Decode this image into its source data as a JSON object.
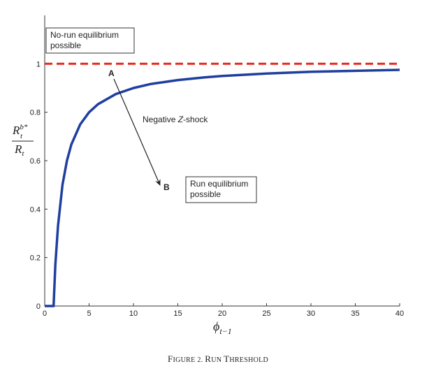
{
  "chart_data": {
    "type": "line",
    "xlim": [
      0,
      40
    ],
    "ylim": [
      0,
      1.2
    ],
    "x_ticks": [
      0,
      5,
      10,
      15,
      20,
      25,
      30,
      35,
      40
    ],
    "y_ticks": [
      0,
      0.2,
      0.4,
      0.6,
      0.8,
      1
    ],
    "x_tick_labels": [
      "0",
      "5",
      "10",
      "15",
      "20",
      "25",
      "30",
      "35",
      "40"
    ],
    "y_tick_labels": [
      "0",
      "0.2",
      "0.4",
      "0.6",
      "0.8",
      "1"
    ],
    "grid": false,
    "xlabel": {
      "main": "ϕ",
      "subscript": "t−1"
    },
    "ylabel": {
      "num_main": "R",
      "num_sub": "t",
      "num_sup": "b*",
      "den_main": "R",
      "den_sub": "t"
    },
    "series": [
      {
        "color": "#1f3f9f",
        "style": "solid",
        "x": [
          0,
          1,
          1.2,
          1.5,
          2,
          2.5,
          3,
          4,
          5,
          6,
          8,
          10,
          12,
          15,
          18,
          20,
          25,
          30,
          35,
          40
        ],
        "y": [
          0,
          0,
          0.17,
          0.33,
          0.5,
          0.6,
          0.667,
          0.75,
          0.8,
          0.833,
          0.875,
          0.9,
          0.917,
          0.933,
          0.944,
          0.95,
          0.96,
          0.967,
          0.971,
          0.975
        ]
      },
      {
        "color": "#e8281e",
        "style": "dashed",
        "x": [
          0,
          40
        ],
        "y": [
          1,
          1
        ]
      }
    ],
    "annotations": {
      "no_run_box": [
        "No-run equilibrium",
        "possible"
      ],
      "run_box": [
        "Run equilibrium",
        "possible"
      ],
      "point_a": "A",
      "point_b": "B",
      "arrow_label_prefix": "Negative ",
      "arrow_label_italic": "Z",
      "arrow_label_suffix": "-shock"
    },
    "caption": "Figure 2. Run Threshold",
    "caption_display": {
      "lead_large": "F",
      "lead_rest": "IGURE 2. ",
      "r_large": "R",
      "r_rest": "UN ",
      "t_large": "T",
      "t_rest": "HRESHOLD"
    },
    "colors": {
      "curve": "#1f3f9f",
      "threshold": "#e8281e",
      "axis": "#333333"
    }
  }
}
